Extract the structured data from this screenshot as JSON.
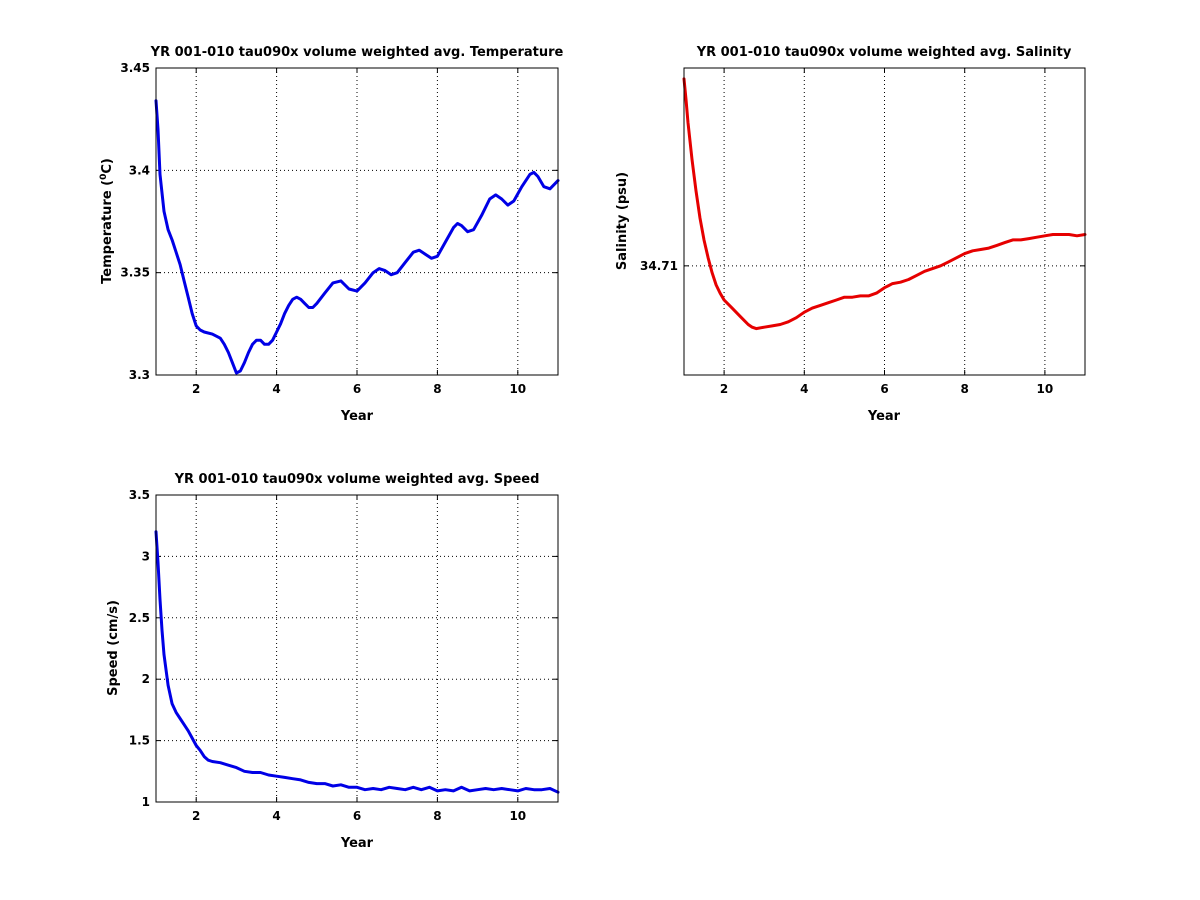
{
  "chart_data": [
    {
      "id": "temperature",
      "type": "line",
      "title": "YR 001-010 tau090x volume weighted avg. Temperature",
      "xlabel": "Year",
      "ylabel": "Temperature (",
      "ylabel_super": "0",
      "ylabel_suffix": "C)",
      "xlim": [
        1,
        11
      ],
      "ylim": [
        3.3,
        3.45
      ],
      "xticks": [
        2,
        4,
        6,
        8,
        10
      ],
      "xtick_labels": [
        "2",
        "4",
        "6",
        "8",
        "10"
      ],
      "yticks": [
        3.3,
        3.35,
        3.4,
        3.45
      ],
      "ytick_labels": [
        "3.3",
        "3.35",
        "3.4",
        "3.45"
      ],
      "grid": true,
      "color": "#0000e6",
      "series": [
        {
          "x": [
            1.0,
            1.05,
            1.1,
            1.2,
            1.3,
            1.4,
            1.5,
            1.6,
            1.7,
            1.8,
            1.9,
            2.0,
            2.1,
            2.2,
            2.4,
            2.6,
            2.7,
            2.8,
            2.9,
            3.0,
            3.1,
            3.2,
            3.3,
            3.4,
            3.5,
            3.6,
            3.7,
            3.8,
            3.9,
            4.0,
            4.1,
            4.2,
            4.3,
            4.4,
            4.5,
            4.6,
            4.7,
            4.8,
            4.9,
            5.0,
            5.2,
            5.4,
            5.6,
            5.8,
            6.0,
            6.2,
            6.4,
            6.55,
            6.7,
            6.85,
            7.0,
            7.2,
            7.4,
            7.55,
            7.7,
            7.85,
            8.0,
            8.2,
            8.4,
            8.5,
            8.6,
            8.75,
            8.9,
            9.1,
            9.3,
            9.45,
            9.6,
            9.75,
            9.9,
            10.1,
            10.3,
            10.4,
            10.5,
            10.65,
            10.8,
            11.0
          ],
          "y": [
            3.434,
            3.42,
            3.398,
            3.38,
            3.371,
            3.366,
            3.36,
            3.354,
            3.346,
            3.338,
            3.33,
            3.324,
            3.322,
            3.321,
            3.32,
            3.318,
            3.315,
            3.311,
            3.306,
            3.301,
            3.302,
            3.306,
            3.311,
            3.315,
            3.317,
            3.317,
            3.315,
            3.315,
            3.317,
            3.321,
            3.325,
            3.33,
            3.334,
            3.337,
            3.338,
            3.337,
            3.335,
            3.333,
            3.333,
            3.335,
            3.34,
            3.345,
            3.346,
            3.342,
            3.341,
            3.345,
            3.35,
            3.352,
            3.351,
            3.349,
            3.35,
            3.355,
            3.36,
            3.361,
            3.359,
            3.357,
            3.358,
            3.365,
            3.372,
            3.374,
            3.373,
            3.37,
            3.371,
            3.378,
            3.386,
            3.388,
            3.386,
            3.383,
            3.385,
            3.392,
            3.398,
            3.399,
            3.397,
            3.392,
            3.391,
            3.395
          ]
        }
      ]
    },
    {
      "id": "salinity",
      "type": "line",
      "title": "YR 001-010 tau090x volume weighted avg. Salinity",
      "xlabel": "Year",
      "ylabel": "Salinity (psu)",
      "xlim": [
        1,
        11
      ],
      "ylim": [
        34.702,
        34.7245
      ],
      "xticks": [
        2,
        4,
        6,
        8,
        10
      ],
      "xtick_labels": [
        "2",
        "4",
        "6",
        "8",
        "10"
      ],
      "yticks": [
        34.71
      ],
      "ytick_labels": [
        "34.71"
      ],
      "grid": true,
      "color": "#e60000",
      "series": [
        {
          "x": [
            1.0,
            1.05,
            1.1,
            1.2,
            1.3,
            1.4,
            1.5,
            1.6,
            1.7,
            1.8,
            1.9,
            2.0,
            2.2,
            2.4,
            2.6,
            2.7,
            2.8,
            3.0,
            3.2,
            3.4,
            3.6,
            3.8,
            4.0,
            4.2,
            4.4,
            4.6,
            4.8,
            5.0,
            5.2,
            5.4,
            5.6,
            5.8,
            6.0,
            6.2,
            6.4,
            6.6,
            6.8,
            7.0,
            7.2,
            7.4,
            7.6,
            7.8,
            8.0,
            8.2,
            8.4,
            8.6,
            8.8,
            9.0,
            9.2,
            9.4,
            9.6,
            9.8,
            10.0,
            10.2,
            10.4,
            10.6,
            10.8,
            11.0
          ],
          "y": [
            34.7237,
            34.7222,
            34.7205,
            34.7178,
            34.7155,
            34.7135,
            34.7119,
            34.7106,
            34.7095,
            34.7086,
            34.708,
            34.7075,
            34.7069,
            34.7063,
            34.7057,
            34.7055,
            34.7054,
            34.7055,
            34.7056,
            34.7057,
            34.7059,
            34.7062,
            34.7066,
            34.7069,
            34.7071,
            34.7073,
            34.7075,
            34.7077,
            34.7077,
            34.7078,
            34.7078,
            34.708,
            34.7084,
            34.7087,
            34.7088,
            34.709,
            34.7093,
            34.7096,
            34.7098,
            34.71,
            34.7103,
            34.7106,
            34.7109,
            34.7111,
            34.7112,
            34.7113,
            34.7115,
            34.7117,
            34.7119,
            34.7119,
            34.712,
            34.7121,
            34.7122,
            34.7123,
            34.7123,
            34.7123,
            34.7122,
            34.7123
          ]
        }
      ]
    },
    {
      "id": "speed",
      "type": "line",
      "title": "YR 001-010 tau090x volume weighted avg. Speed",
      "xlabel": "Year",
      "ylabel": "Speed (cm/s)",
      "xlim": [
        1,
        11
      ],
      "ylim": [
        1,
        3.5
      ],
      "xticks": [
        2,
        4,
        6,
        8,
        10
      ],
      "xtick_labels": [
        "2",
        "4",
        "6",
        "8",
        "10"
      ],
      "yticks": [
        1,
        1.5,
        2,
        2.5,
        3,
        3.5
      ],
      "ytick_labels": [
        "1",
        "1.5",
        "2",
        "2.5",
        "3",
        "3.5"
      ],
      "grid": true,
      "color": "#0000e6",
      "series": [
        {
          "x": [
            1.0,
            1.05,
            1.1,
            1.15,
            1.2,
            1.3,
            1.4,
            1.5,
            1.6,
            1.7,
            1.8,
            1.9,
            2.0,
            2.1,
            2.2,
            2.3,
            2.4,
            2.6,
            2.8,
            3.0,
            3.2,
            3.4,
            3.6,
            3.8,
            4.0,
            4.2,
            4.4,
            4.6,
            4.8,
            5.0,
            5.2,
            5.4,
            5.6,
            5.8,
            6.0,
            6.2,
            6.4,
            6.6,
            6.8,
            7.0,
            7.2,
            7.4,
            7.6,
            7.8,
            8.0,
            8.2,
            8.4,
            8.6,
            8.8,
            9.0,
            9.2,
            9.4,
            9.6,
            9.8,
            10.0,
            10.2,
            10.4,
            10.6,
            10.8,
            11.0
          ],
          "y": [
            3.2,
            2.95,
            2.65,
            2.4,
            2.2,
            1.95,
            1.8,
            1.73,
            1.68,
            1.63,
            1.58,
            1.52,
            1.46,
            1.42,
            1.37,
            1.34,
            1.33,
            1.32,
            1.3,
            1.28,
            1.25,
            1.24,
            1.24,
            1.22,
            1.21,
            1.2,
            1.19,
            1.18,
            1.16,
            1.15,
            1.15,
            1.13,
            1.14,
            1.12,
            1.12,
            1.1,
            1.11,
            1.1,
            1.12,
            1.11,
            1.1,
            1.12,
            1.1,
            1.12,
            1.09,
            1.1,
            1.09,
            1.12,
            1.09,
            1.1,
            1.11,
            1.1,
            1.11,
            1.1,
            1.09,
            1.11,
            1.1,
            1.1,
            1.11,
            1.08
          ]
        }
      ]
    }
  ]
}
